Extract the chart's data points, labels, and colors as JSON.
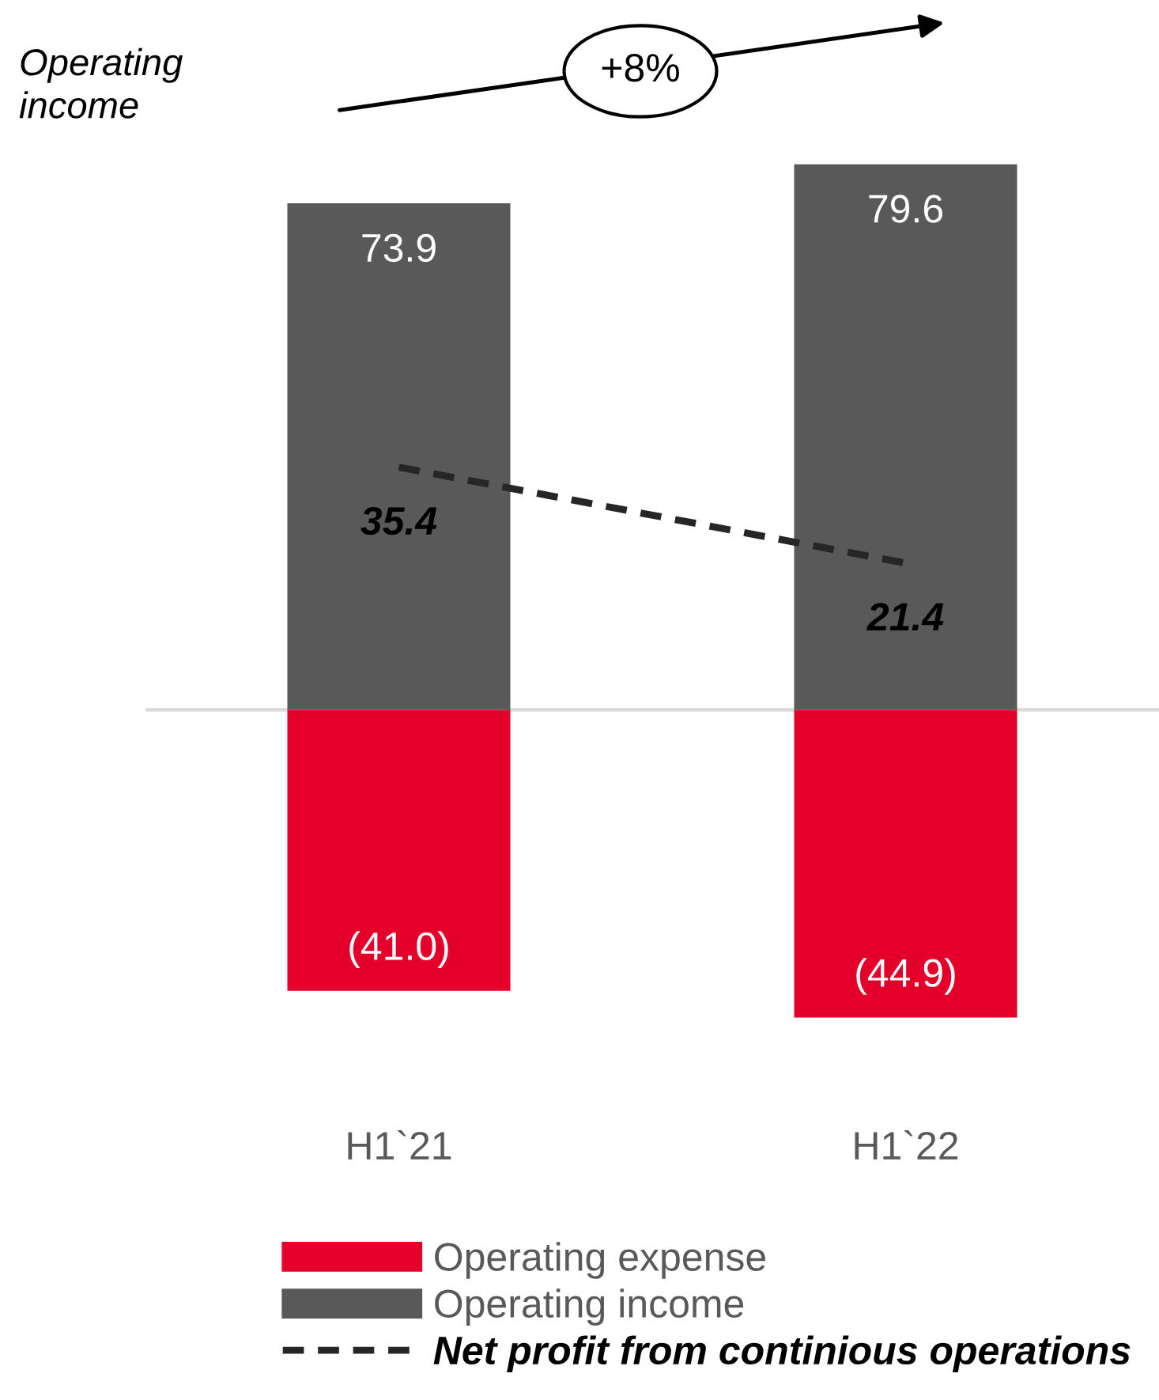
{
  "chart_data": {
    "type": "bar",
    "categories": [
      "H1`21",
      "H1`22"
    ],
    "series": [
      {
        "name": "Operating expense",
        "color": "#e4002b",
        "values": [
          -41.0,
          -44.9
        ],
        "value_labels": [
          "(41.0)",
          "(44.9)"
        ]
      },
      {
        "name": "Operating income",
        "color": "#595959",
        "values": [
          73.9,
          79.6
        ],
        "value_labels": [
          "73.9",
          "79.6"
        ]
      },
      {
        "name": "Net profit from continious operations",
        "type": "line",
        "color": "#262626",
        "line_style": "dashed",
        "values": [
          35.4,
          21.4
        ],
        "value_labels": [
          "35.4",
          "21.4"
        ]
      }
    ],
    "stacked": true,
    "tick_labels": "x",
    "legend": "bottom",
    "annotations": [
      "Operating income",
      "+8%"
    ]
  }
}
